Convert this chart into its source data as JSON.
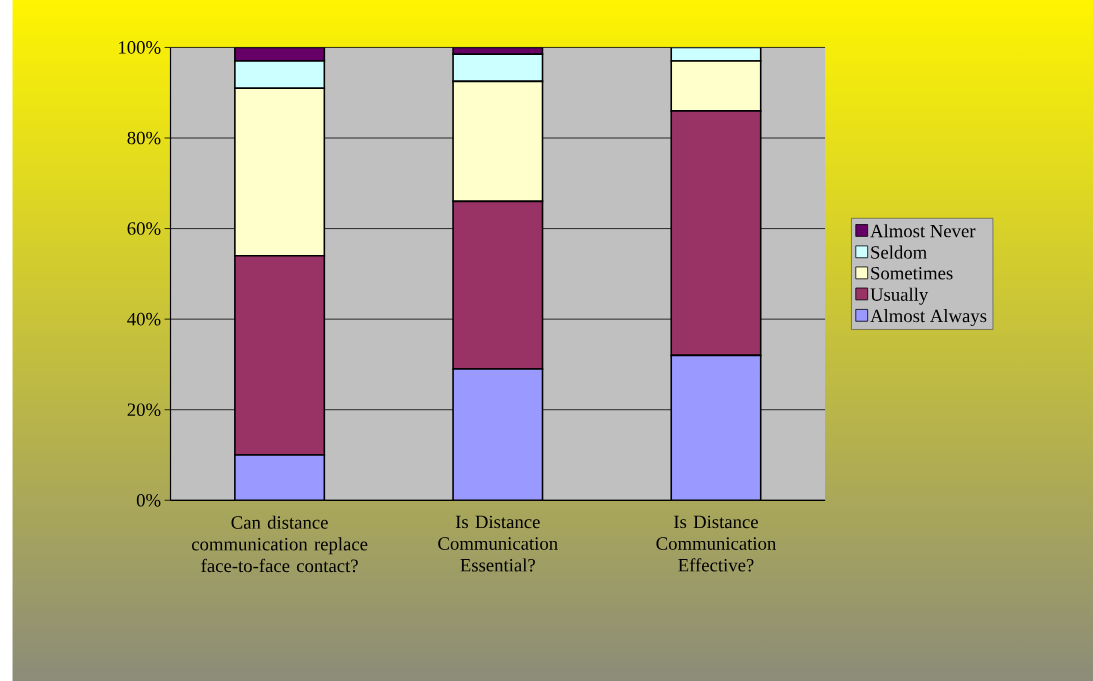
{
  "chart_data": {
    "type": "bar",
    "stacked": true,
    "categories": [
      "Can distance communication replace face-to-face contact?",
      "Is Distance Communication Essential?",
      "Is Distance Communication Effective?"
    ],
    "series": [
      {
        "name": "Almost Always",
        "color": "#9999ff",
        "values": [
          10,
          29,
          32
        ]
      },
      {
        "name": "Usually",
        "color": "#993366",
        "values": [
          44,
          37,
          54
        ]
      },
      {
        "name": "Sometimes",
        "color": "#ffffcc",
        "values": [
          37,
          26.5,
          11
        ]
      },
      {
        "name": "Seldom",
        "color": "#ccffff",
        "values": [
          6,
          6,
          3
        ]
      },
      {
        "name": "Almost Never",
        "color": "#660066",
        "values": [
          3,
          1.5,
          0
        ]
      }
    ],
    "ylim": [
      0,
      100
    ],
    "yticks": [
      {
        "value": 0,
        "label": "0%"
      },
      {
        "value": 20,
        "label": "20%"
      },
      {
        "value": 40,
        "label": "40%"
      },
      {
        "value": 60,
        "label": "60%"
      },
      {
        "value": 80,
        "label": "80%"
      },
      {
        "value": 100,
        "label": "100%"
      }
    ],
    "grid": "y",
    "legend": "right"
  }
}
